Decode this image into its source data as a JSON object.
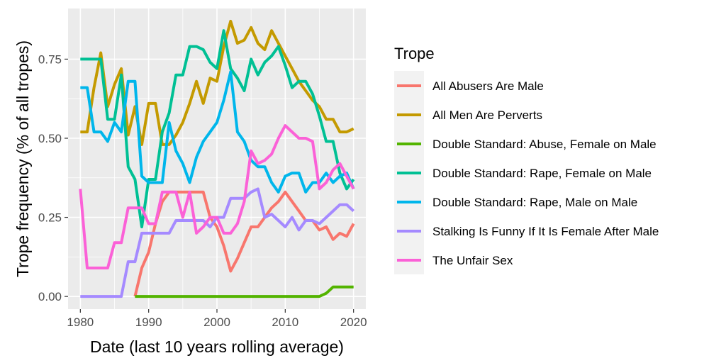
{
  "chart_data": {
    "type": "line",
    "title": "",
    "xlabel": "Date (last 10 years rolling average)",
    "ylabel": "Trope frequency (% of all tropes)",
    "xlim": [
      1978.2,
      2021.8
    ],
    "ylim": [
      -0.04,
      0.91
    ],
    "x_ticks": [
      1980,
      1990,
      2000,
      2010,
      2020
    ],
    "x_tick_labels": [
      "1980",
      "1990",
      "2000",
      "2010",
      "2020"
    ],
    "y_ticks": [
      0,
      0.25,
      0.5,
      0.75
    ],
    "y_tick_labels": [
      "0.00",
      "0.25",
      "0.50",
      "0.75"
    ],
    "grid": true,
    "legend": {
      "title": "Trope",
      "position": "right"
    },
    "x": [
      1980,
      1981,
      1982,
      1983,
      1984,
      1985,
      1986,
      1987,
      1988,
      1989,
      1990,
      1991,
      1992,
      1993,
      1994,
      1995,
      1996,
      1997,
      1998,
      1999,
      2000,
      2001,
      2002,
      2003,
      2004,
      2005,
      2006,
      2007,
      2008,
      2009,
      2010,
      2011,
      2012,
      2013,
      2014,
      2015,
      2016,
      2017,
      2018,
      2019,
      2020
    ],
    "series": [
      {
        "name": "All Abusers Are Male",
        "color": "#F8766D",
        "values": [
          null,
          null,
          null,
          null,
          null,
          null,
          null,
          null,
          0,
          0.09,
          0.14,
          0.23,
          0.3,
          0.33,
          0.33,
          0.33,
          0.33,
          0.33,
          0.33,
          0.25,
          0.22,
          0.16,
          0.08,
          0.12,
          0.17,
          0.22,
          0.22,
          0.25,
          0.28,
          0.3,
          0.33,
          0.3,
          0.27,
          0.24,
          0.24,
          0.21,
          0.22,
          0.18,
          0.2,
          0.19,
          0.23
        ]
      },
      {
        "name": "All Men Are Perverts",
        "color": "#C49A00",
        "values": [
          0.52,
          0.52,
          0.66,
          0.77,
          0.6,
          0.67,
          0.72,
          0.51,
          0.6,
          0.48,
          0.61,
          0.61,
          0.48,
          0.48,
          0.51,
          0.55,
          0.61,
          0.68,
          0.61,
          0.69,
          0.68,
          0.79,
          0.87,
          0.8,
          0.81,
          0.85,
          0.8,
          0.78,
          0.84,
          0.8,
          0.76,
          0.72,
          0.68,
          0.65,
          0.62,
          0.6,
          0.56,
          0.56,
          0.52,
          0.52,
          0.53
        ]
      },
      {
        "name": "Double Standard: Abuse, Female on Male",
        "color": "#53B400",
        "values": [
          null,
          null,
          null,
          null,
          null,
          null,
          null,
          null,
          0,
          0,
          0,
          0,
          0,
          0,
          0,
          0,
          0,
          0,
          0,
          0,
          0,
          0,
          0,
          0,
          0,
          0,
          0,
          0,
          0,
          0,
          0,
          0,
          0,
          0,
          0,
          0,
          0.01,
          0.03,
          0.03,
          0.03,
          0.03
        ]
      },
      {
        "name": "Double Standard: Rape, Female on Male",
        "color": "#00C094",
        "values": [
          0.75,
          0.75,
          0.75,
          0.75,
          0.56,
          0.56,
          0.7,
          0.41,
          0.37,
          0.22,
          0.37,
          0.37,
          0.52,
          0.58,
          0.7,
          0.7,
          0.79,
          0.79,
          0.78,
          0.74,
          0.72,
          0.84,
          0.72,
          0.69,
          0.65,
          0.75,
          0.7,
          0.74,
          0.76,
          0.79,
          0.73,
          0.66,
          0.68,
          0.68,
          0.64,
          0.57,
          0.49,
          0.49,
          0.39,
          0.34,
          0.37
        ]
      },
      {
        "name": "Double Standard: Rape, Male on Male",
        "color": "#00B6EB",
        "values": [
          0.66,
          0.66,
          0.52,
          0.52,
          0.49,
          0.55,
          0.52,
          0.68,
          0.68,
          0.38,
          0.36,
          0.36,
          0.36,
          0.55,
          0.46,
          0.42,
          0.36,
          0.44,
          0.49,
          0.52,
          0.55,
          0.62,
          0.71,
          0.52,
          0.49,
          0.43,
          0.41,
          0.41,
          0.36,
          0.33,
          0.38,
          0.39,
          0.39,
          0.33,
          0.36,
          0.36,
          0.39,
          0.36,
          0.38,
          0.39,
          0.34
        ]
      },
      {
        "name": "Stalking Is Funny If It Is Female After Male",
        "color": "#A58AFF",
        "values": [
          0,
          0,
          0,
          0,
          0,
          0,
          0,
          0.11,
          0.11,
          0.2,
          0.2,
          0.2,
          0.2,
          0.2,
          0.24,
          0.24,
          0.24,
          0.24,
          0.24,
          0.22,
          0.25,
          0.25,
          0.31,
          0.31,
          0.31,
          0.33,
          0.34,
          0.25,
          0.26,
          0.24,
          0.22,
          0.25,
          0.21,
          0.24,
          0.24,
          0.23,
          0.25,
          0.27,
          0.29,
          0.29,
          0.27
        ]
      },
      {
        "name": "The Unfair Sex",
        "color": "#FB61D7",
        "values": [
          0.34,
          0.09,
          0.09,
          0.09,
          0.09,
          0.17,
          0.17,
          0.28,
          0.28,
          0.28,
          0.23,
          0.23,
          0.33,
          0.33,
          0.33,
          0.25,
          0.33,
          0.2,
          0.22,
          0.25,
          0.25,
          0.2,
          0.2,
          0.23,
          0.3,
          0.46,
          0.42,
          0.43,
          0.45,
          0.5,
          0.54,
          0.52,
          0.5,
          0.5,
          0.49,
          0.34,
          0.36,
          0.4,
          0.42,
          0.38,
          0.34
        ]
      }
    ]
  }
}
